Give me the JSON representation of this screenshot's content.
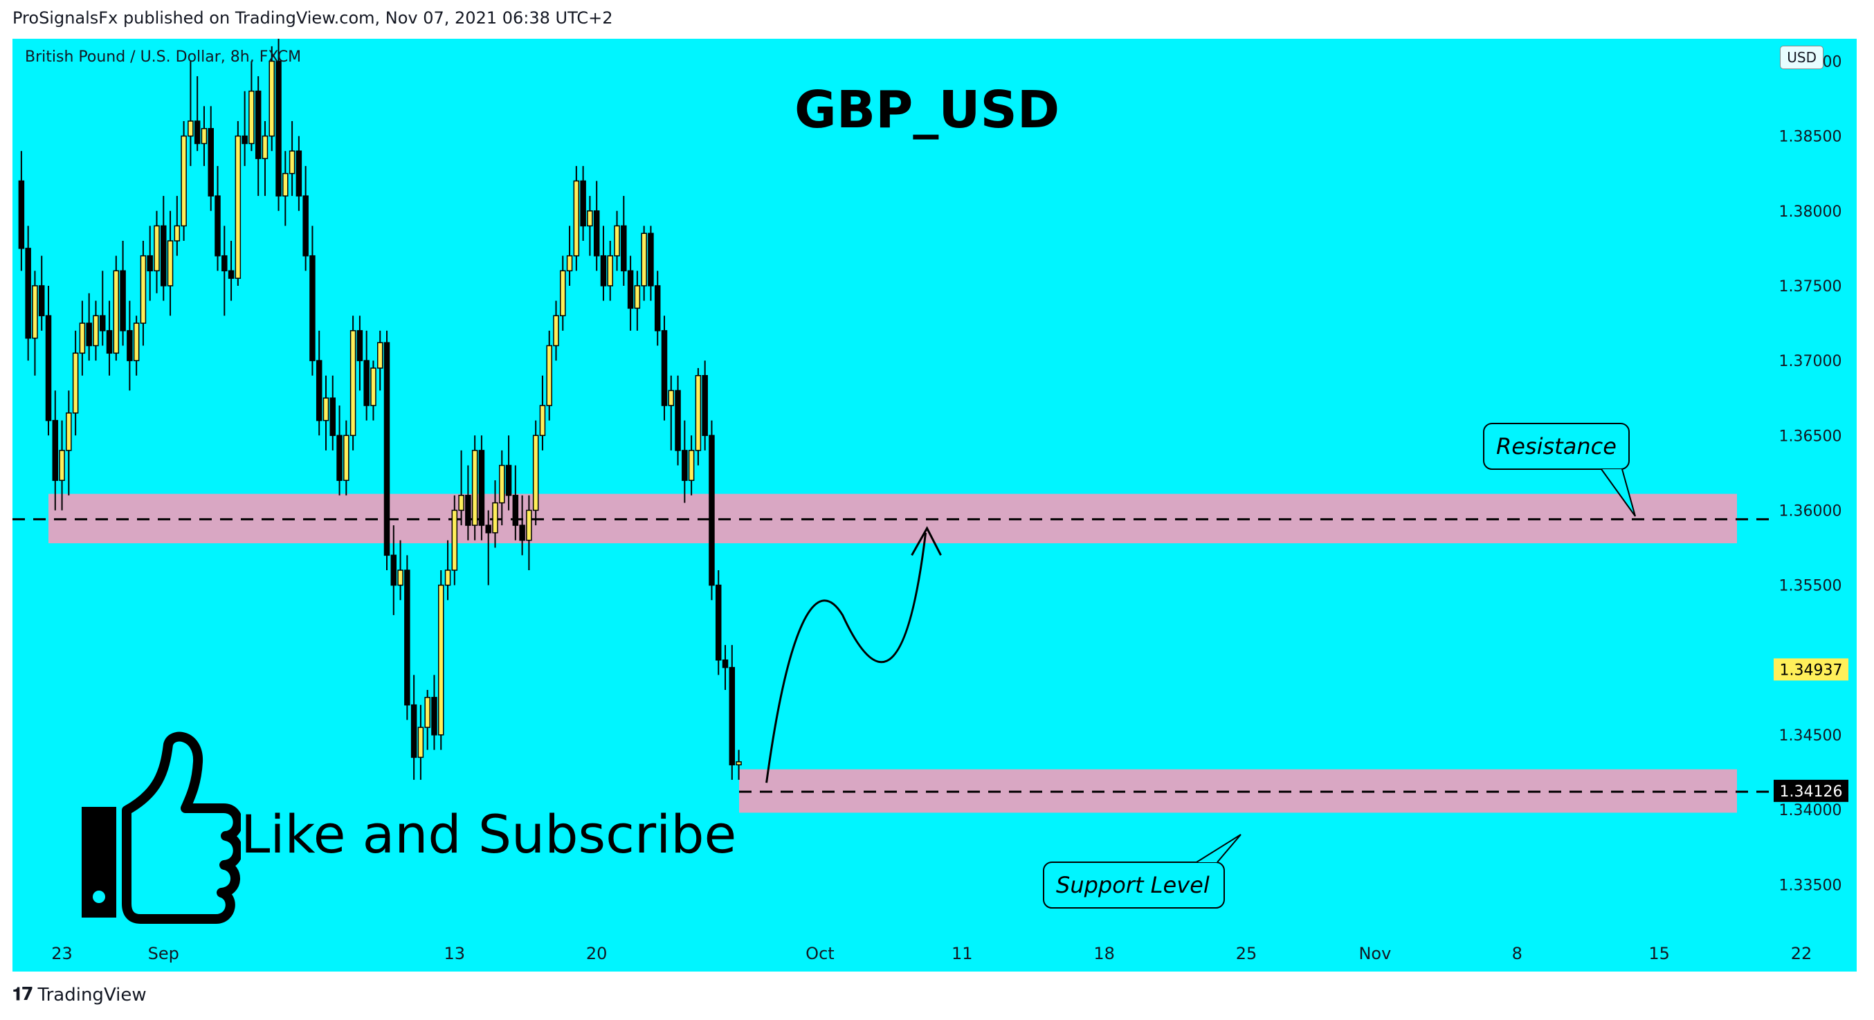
{
  "header": {
    "publisher_line": "ProSignalsFx published on TradingView.com, Nov 07, 2021 06:38 UTC+2"
  },
  "footer": {
    "brand": "TradingView"
  },
  "overlay": {
    "like_text": "Like and Subscribe"
  },
  "colors": {
    "background": "#00f5ff",
    "bull": "#ffef5a",
    "bear": "#000000",
    "zone": "#d9a7c3"
  },
  "chart_data": {
    "type": "candlestick",
    "symbol": "British Pound / U.S. Dollar, 8h, FXCM",
    "title": "GBP_USD",
    "currency": "USD",
    "ylim": [
      1.3315,
      1.3915
    ],
    "y_ticks": [
      "1.39000",
      "1.38500",
      "1.38000",
      "1.37500",
      "1.37000",
      "1.36500",
      "1.36000",
      "1.35500",
      "1.34500",
      "1.34000",
      "1.33500"
    ],
    "y_tick_values": [
      1.39,
      1.385,
      1.38,
      1.375,
      1.37,
      1.365,
      1.36,
      1.355,
      1.345,
      1.34,
      1.335
    ],
    "x_ticks": [
      {
        "label": "23",
        "bar": 6
      },
      {
        "label": "Sep",
        "bar": 21
      },
      {
        "label": "13",
        "bar": 64
      },
      {
        "label": "20",
        "bar": 85
      },
      {
        "label": "Oct",
        "bar": 118
      },
      {
        "label": "11",
        "bar": 139
      },
      {
        "label": "18",
        "bar": 160
      },
      {
        "label": "25",
        "bar": 181
      },
      {
        "label": "Nov",
        "bar": 200
      },
      {
        "label": "8",
        "bar": 221
      },
      {
        "label": "15",
        "bar": 242
      },
      {
        "label": "22",
        "bar": 263
      }
    ],
    "price_labels": [
      {
        "text": "1.34937",
        "value": 1.34937,
        "bg": "#ffef5a",
        "fg": "#000000"
      },
      {
        "text": "1.34126",
        "value": 1.34126,
        "bg": "#000000",
        "fg": "#ffffff"
      }
    ],
    "zones": [
      {
        "name": "Resistance",
        "from": 1.3578,
        "to": 1.3611,
        "line": 1.3594,
        "x_start_bar": 6,
        "x_end_bar": 292
      },
      {
        "name": "Support Level",
        "from": 1.3398,
        "to": 1.3427,
        "line": 1.3412,
        "x_start_bar": 123,
        "x_end_bar": 292
      }
    ],
    "annotations": [
      "Resistance",
      "Support Level"
    ],
    "candles": [
      [
        1.382,
        1.384,
        1.376,
        1.3775
      ],
      [
        1.3775,
        1.379,
        1.37,
        1.3715
      ],
      [
        1.3715,
        1.376,
        1.369,
        1.375
      ],
      [
        1.375,
        1.377,
        1.372,
        1.373
      ],
      [
        1.373,
        1.375,
        1.365,
        1.366
      ],
      [
        1.366,
        1.368,
        1.36,
        1.362
      ],
      [
        1.362,
        1.366,
        1.36,
        1.364
      ],
      [
        1.364,
        1.368,
        1.361,
        1.3665
      ],
      [
        1.3665,
        1.372,
        1.365,
        1.3705
      ],
      [
        1.3705,
        1.374,
        1.369,
        1.3725
      ],
      [
        1.3725,
        1.3745,
        1.37,
        1.371
      ],
      [
        1.371,
        1.374,
        1.37,
        1.373
      ],
      [
        1.373,
        1.376,
        1.371,
        1.372
      ],
      [
        1.372,
        1.374,
        1.369,
        1.3705
      ],
      [
        1.3705,
        1.377,
        1.37,
        1.376
      ],
      [
        1.376,
        1.378,
        1.371,
        1.372
      ],
      [
        1.372,
        1.374,
        1.368,
        1.37
      ],
      [
        1.37,
        1.373,
        1.369,
        1.3725
      ],
      [
        1.3725,
        1.378,
        1.371,
        1.377
      ],
      [
        1.377,
        1.379,
        1.374,
        1.376
      ],
      [
        1.376,
        1.38,
        1.3745,
        1.379
      ],
      [
        1.379,
        1.381,
        1.374,
        1.375
      ],
      [
        1.375,
        1.38,
        1.373,
        1.378
      ],
      [
        1.378,
        1.381,
        1.377,
        1.379
      ],
      [
        1.379,
        1.386,
        1.378,
        1.385
      ],
      [
        1.385,
        1.39,
        1.383,
        1.386
      ],
      [
        1.386,
        1.389,
        1.384,
        1.3845
      ],
      [
        1.3845,
        1.387,
        1.383,
        1.3855
      ],
      [
        1.3855,
        1.387,
        1.38,
        1.381
      ],
      [
        1.381,
        1.383,
        1.376,
        1.377
      ],
      [
        1.377,
        1.379,
        1.373,
        1.376
      ],
      [
        1.376,
        1.378,
        1.374,
        1.3755
      ],
      [
        1.3755,
        1.386,
        1.375,
        1.385
      ],
      [
        1.385,
        1.388,
        1.383,
        1.3845
      ],
      [
        1.3845,
        1.39,
        1.384,
        1.388
      ],
      [
        1.388,
        1.389,
        1.381,
        1.3835
      ],
      [
        1.3835,
        1.386,
        1.381,
        1.385
      ],
      [
        1.385,
        1.391,
        1.384,
        1.39
      ],
      [
        1.39,
        1.392,
        1.38,
        1.381
      ],
      [
        1.381,
        1.384,
        1.379,
        1.3825
      ],
      [
        1.3825,
        1.386,
        1.381,
        1.384
      ],
      [
        1.384,
        1.385,
        1.38,
        1.381
      ],
      [
        1.381,
        1.383,
        1.376,
        1.377
      ],
      [
        1.377,
        1.379,
        1.369,
        1.37
      ],
      [
        1.37,
        1.372,
        1.365,
        1.366
      ],
      [
        1.366,
        1.369,
        1.364,
        1.3675
      ],
      [
        1.3675,
        1.369,
        1.364,
        1.365
      ],
      [
        1.365,
        1.367,
        1.361,
        1.362
      ],
      [
        1.362,
        1.366,
        1.361,
        1.365
      ],
      [
        1.365,
        1.373,
        1.364,
        1.372
      ],
      [
        1.372,
        1.373,
        1.368,
        1.37
      ],
      [
        1.37,
        1.372,
        1.366,
        1.367
      ],
      [
        1.367,
        1.37,
        1.366,
        1.3695
      ],
      [
        1.3695,
        1.372,
        1.368,
        1.3712
      ],
      [
        1.3712,
        1.372,
        1.356,
        1.357
      ],
      [
        1.357,
        1.359,
        1.353,
        1.355
      ],
      [
        1.355,
        1.358,
        1.354,
        1.356
      ],
      [
        1.356,
        1.357,
        1.346,
        1.347
      ],
      [
        1.347,
        1.349,
        1.342,
        1.3435
      ],
      [
        1.3435,
        1.347,
        1.342,
        1.3455
      ],
      [
        1.3455,
        1.348,
        1.344,
        1.3475
      ],
      [
        1.3475,
        1.349,
        1.344,
        1.345
      ],
      [
        1.345,
        1.356,
        1.344,
        1.355
      ],
      [
        1.355,
        1.358,
        1.354,
        1.356
      ],
      [
        1.356,
        1.361,
        1.355,
        1.36
      ],
      [
        1.36,
        1.364,
        1.359,
        1.361
      ],
      [
        1.361,
        1.363,
        1.358,
        1.359
      ],
      [
        1.359,
        1.365,
        1.358,
        1.364
      ],
      [
        1.364,
        1.365,
        1.358,
        1.359
      ],
      [
        1.359,
        1.36,
        1.355,
        1.3585
      ],
      [
        1.3585,
        1.362,
        1.3575,
        1.3605
      ],
      [
        1.3605,
        1.364,
        1.359,
        1.363
      ],
      [
        1.363,
        1.365,
        1.36,
        1.361
      ],
      [
        1.361,
        1.363,
        1.358,
        1.359
      ],
      [
        1.359,
        1.361,
        1.357,
        1.358
      ],
      [
        1.358,
        1.361,
        1.356,
        1.36
      ],
      [
        1.36,
        1.366,
        1.359,
        1.365
      ],
      [
        1.365,
        1.369,
        1.364,
        1.367
      ],
      [
        1.367,
        1.372,
        1.366,
        1.371
      ],
      [
        1.371,
        1.374,
        1.37,
        1.373
      ],
      [
        1.373,
        1.377,
        1.372,
        1.376
      ],
      [
        1.376,
        1.379,
        1.375,
        1.377
      ],
      [
        1.377,
        1.383,
        1.376,
        1.382
      ],
      [
        1.382,
        1.383,
        1.378,
        1.379
      ],
      [
        1.379,
        1.381,
        1.377,
        1.38
      ],
      [
        1.38,
        1.382,
        1.376,
        1.377
      ],
      [
        1.377,
        1.379,
        1.374,
        1.375
      ],
      [
        1.375,
        1.378,
        1.374,
        1.377
      ],
      [
        1.377,
        1.38,
        1.376,
        1.379
      ],
      [
        1.379,
        1.381,
        1.375,
        1.376
      ],
      [
        1.376,
        1.377,
        1.372,
        1.3735
      ],
      [
        1.3735,
        1.376,
        1.372,
        1.375
      ],
      [
        1.375,
        1.379,
        1.374,
        1.3785
      ],
      [
        1.3785,
        1.379,
        1.374,
        1.375
      ],
      [
        1.375,
        1.376,
        1.371,
        1.372
      ],
      [
        1.372,
        1.373,
        1.366,
        1.367
      ],
      [
        1.367,
        1.369,
        1.364,
        1.368
      ],
      [
        1.368,
        1.369,
        1.363,
        1.364
      ],
      [
        1.364,
        1.366,
        1.3605,
        1.362
      ],
      [
        1.362,
        1.365,
        1.361,
        1.364
      ],
      [
        1.364,
        1.3695,
        1.363,
        1.369
      ],
      [
        1.369,
        1.37,
        1.364,
        1.365
      ],
      [
        1.365,
        1.366,
        1.354,
        1.355
      ],
      [
        1.355,
        1.356,
        1.349,
        1.35
      ],
      [
        1.35,
        1.351,
        1.348,
        1.3495
      ],
      [
        1.3495,
        1.351,
        1.342,
        1.343
      ],
      [
        1.343,
        1.344,
        1.342,
        1.3432
      ]
    ]
  }
}
